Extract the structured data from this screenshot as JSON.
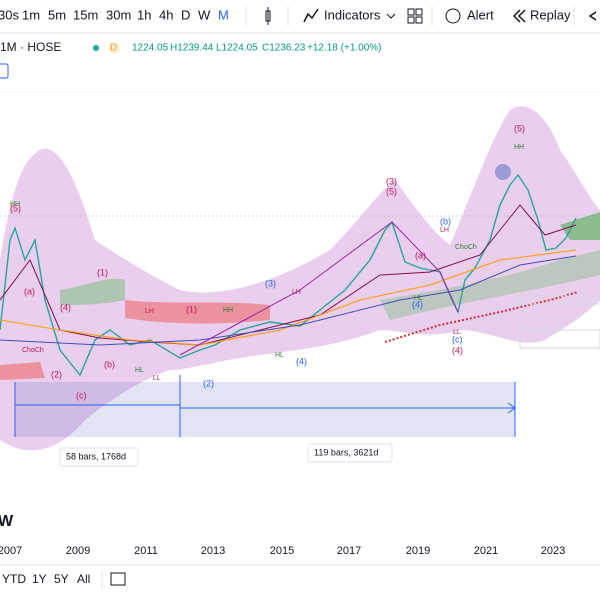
{
  "toolbar": {
    "intervals": [
      "30s",
      "1m",
      "5m",
      "15m",
      "30m",
      "1h",
      "4h",
      "D",
      "W",
      "M"
    ],
    "indicators": "Indicators",
    "alert": "Alert",
    "replay": "Replay"
  },
  "legend": {
    "symbol": "1M · HOSE",
    "badge": "D",
    "open": "1224.05",
    "high": "H1239.44",
    "low": "L1224.05",
    "close": "C1236.23",
    "change": "+12.18 (+1.00%)"
  },
  "annotations": {
    "waves": [
      "(5)",
      "(3)",
      "(5)",
      "(1)",
      "(a)",
      "(4)",
      "(b)",
      "(c)",
      "(2)",
      "(1)",
      "(3)",
      "(4)",
      "(a)",
      "(b)",
      "(4)",
      "(c)",
      "(4)",
      "(5)",
      "(2)"
    ],
    "structure": [
      "HH",
      "LH",
      "HL",
      "LL",
      "ChoCh",
      "HH",
      "LH",
      "HL",
      "ChoCh",
      "HH",
      "LH",
      "HL",
      "LL"
    ],
    "measure_left": "58 bars, 1768d",
    "measure_right": "119 bars, 3621d"
  },
  "time_axis": [
    "2007",
    "2009",
    "2011",
    "2013",
    "2015",
    "2017",
    "2019",
    "2021",
    "2023"
  ],
  "logo": "W",
  "bottom_bar": [
    "YTD",
    "1Y",
    "5Y",
    "All"
  ]
}
